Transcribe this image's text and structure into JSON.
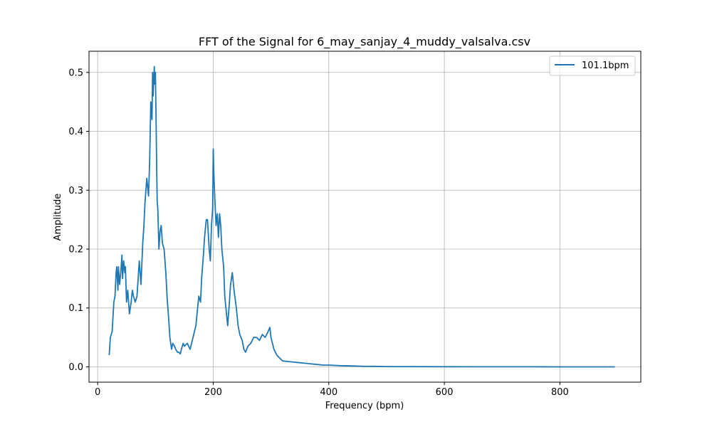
{
  "chart_data": {
    "type": "line",
    "title": "FFT of the Signal for 6_may_sanjay_4_muddy_valsalva.csv",
    "xlabel": "Frequency (bpm)",
    "ylabel": "Amplitude",
    "xlim": [
      -15,
      940
    ],
    "ylim": [
      -0.026,
      0.536
    ],
    "xticks": [
      0,
      200,
      400,
      600,
      800
    ],
    "yticks": [
      0.0,
      0.1,
      0.2,
      0.3,
      0.4,
      0.5
    ],
    "xtick_labels": [
      "0",
      "200",
      "400",
      "600",
      "800"
    ],
    "ytick_labels": [
      "0.0",
      "0.1",
      "0.2",
      "0.3",
      "0.4",
      "0.5"
    ],
    "grid": true,
    "legend_position": "top-right",
    "colors": {
      "series": "#1f77b4",
      "grid": "#b0b0b0",
      "axis": "#000000"
    },
    "series": [
      {
        "name": "101.1bpm",
        "x": [
          20,
          22,
          25,
          28,
          30,
          32,
          33,
          35,
          36,
          38,
          40,
          42,
          43,
          45,
          47,
          48,
          50,
          52,
          55,
          58,
          60,
          62,
          65,
          68,
          70,
          72,
          75,
          78,
          80,
          82,
          85,
          88,
          90,
          92,
          94,
          95,
          96,
          98,
          99,
          100,
          101,
          102,
          103,
          104,
          106,
          108,
          110,
          112,
          115,
          118,
          120,
          123,
          125,
          128,
          130,
          133,
          135,
          138,
          140,
          143,
          145,
          148,
          150,
          155,
          160,
          165,
          170,
          175,
          178,
          180,
          183,
          185,
          188,
          190,
          193,
          195,
          197,
          199,
          200,
          201,
          203,
          205,
          207,
          209,
          211,
          213,
          215,
          218,
          220,
          223,
          225,
          228,
          230,
          233,
          236,
          240,
          243,
          246,
          250,
          253,
          256,
          260,
          265,
          270,
          275,
          280,
          285,
          290,
          295,
          298,
          300,
          305,
          310,
          315,
          320,
          330,
          340,
          350,
          360,
          370,
          380,
          390,
          400,
          420,
          440,
          460,
          480,
          500,
          550,
          600,
          650,
          700,
          750,
          800,
          850,
          895
        ],
        "y": [
          0.02,
          0.05,
          0.06,
          0.11,
          0.12,
          0.16,
          0.17,
          0.13,
          0.17,
          0.14,
          0.16,
          0.19,
          0.15,
          0.18,
          0.16,
          0.17,
          0.11,
          0.13,
          0.09,
          0.11,
          0.13,
          0.12,
          0.11,
          0.12,
          0.15,
          0.18,
          0.14,
          0.21,
          0.24,
          0.28,
          0.32,
          0.29,
          0.35,
          0.45,
          0.42,
          0.5,
          0.46,
          0.51,
          0.48,
          0.5,
          0.43,
          0.35,
          0.28,
          0.27,
          0.2,
          0.23,
          0.24,
          0.21,
          0.2,
          0.16,
          0.12,
          0.08,
          0.05,
          0.03,
          0.04,
          0.035,
          0.03,
          0.025,
          0.025,
          0.022,
          0.03,
          0.04,
          0.035,
          0.04,
          0.03,
          0.05,
          0.07,
          0.12,
          0.11,
          0.15,
          0.19,
          0.22,
          0.25,
          0.25,
          0.2,
          0.18,
          0.24,
          0.27,
          0.37,
          0.33,
          0.28,
          0.24,
          0.26,
          0.22,
          0.26,
          0.24,
          0.2,
          0.17,
          0.12,
          0.09,
          0.07,
          0.11,
          0.14,
          0.16,
          0.13,
          0.1,
          0.07,
          0.055,
          0.045,
          0.03,
          0.025,
          0.035,
          0.04,
          0.05,
          0.05,
          0.045,
          0.055,
          0.05,
          0.06,
          0.067,
          0.05,
          0.03,
          0.02,
          0.015,
          0.01,
          0.009,
          0.008,
          0.007,
          0.006,
          0.005,
          0.004,
          0.003,
          0.003,
          0.002,
          0.0015,
          0.001,
          0.0008,
          0.0005,
          0.0003,
          0.0002,
          0.0001,
          0.0001,
          0.0001,
          0.0,
          0.0,
          0.0
        ]
      }
    ]
  }
}
